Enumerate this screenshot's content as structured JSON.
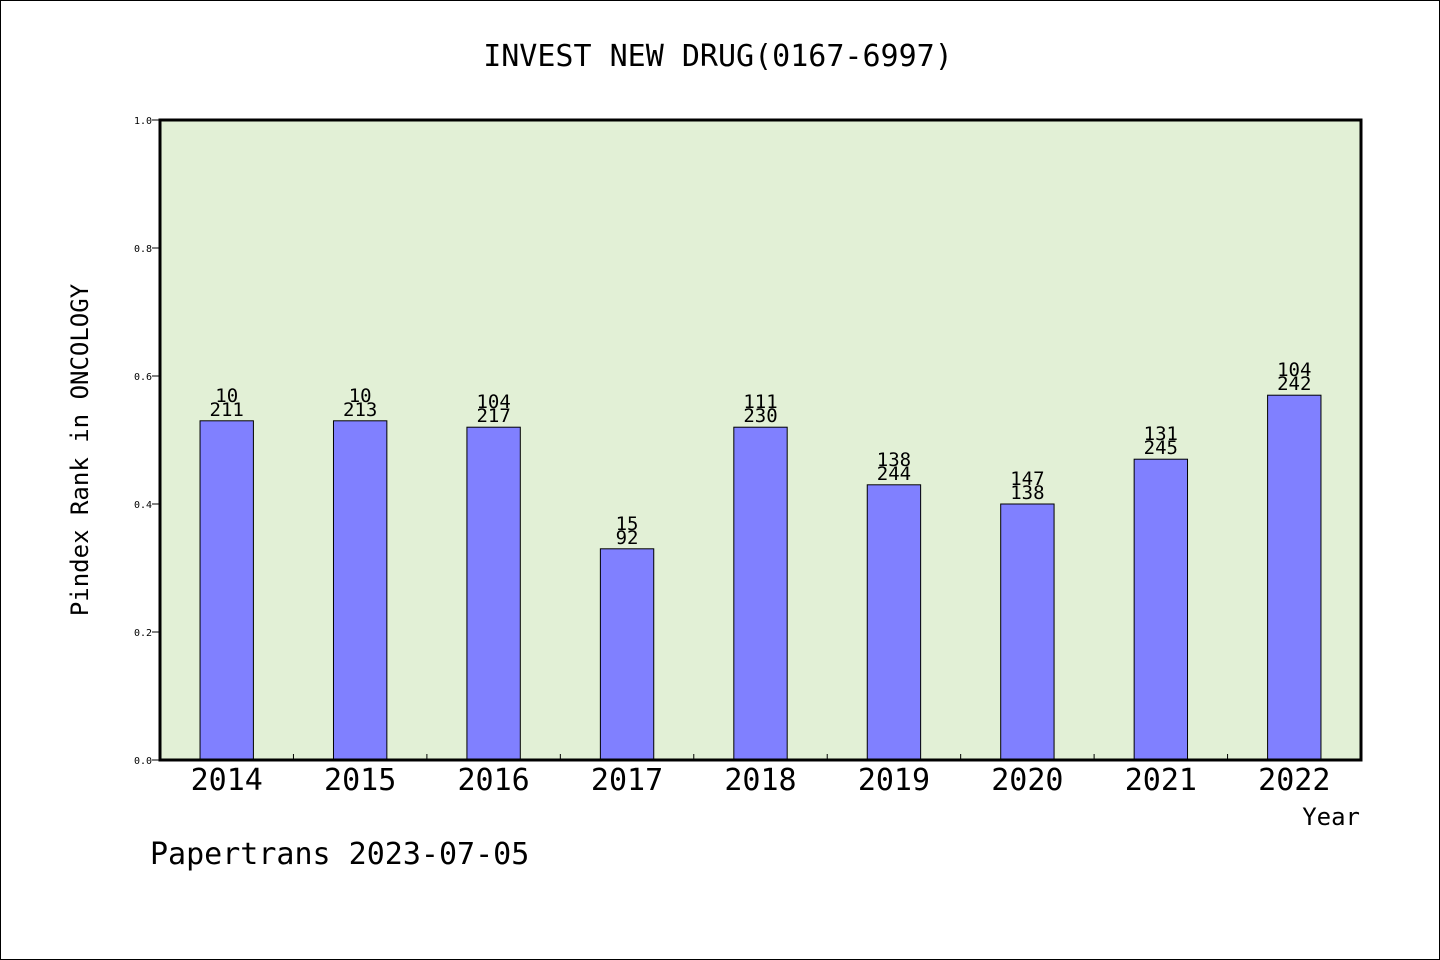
{
  "chart_data": {
    "type": "bar",
    "title": "INVEST NEW DRUG(0167-6997)",
    "xlabel": "Year",
    "ylabel": "Pindex Rank in ONCOLOGY",
    "ylim": [
      0,
      1.0
    ],
    "yticks": [
      "0.0",
      "0.2",
      "0.4",
      "0.6",
      "0.8",
      "1.0"
    ],
    "categories": [
      "2014",
      "2015",
      "2016",
      "2017",
      "2018",
      "2019",
      "2020",
      "2021",
      "2022"
    ],
    "values": [
      0.53,
      0.53,
      0.52,
      0.33,
      0.52,
      0.43,
      0.4,
      0.47,
      0.57
    ],
    "labels_top": [
      "10",
      "10",
      "104",
      "15",
      "111",
      "138",
      "147",
      "131",
      "104"
    ],
    "labels_bottom": [
      "211",
      "213",
      "217",
      "92",
      "230",
      "244",
      "138",
      "245",
      "242"
    ],
    "grid": false,
    "colors": {
      "bar": "#8080ff",
      "plot_bg": "#e2f0d6",
      "axis": "#000000"
    }
  },
  "footer": {
    "credit": "Papertrans 2023-07-05"
  }
}
